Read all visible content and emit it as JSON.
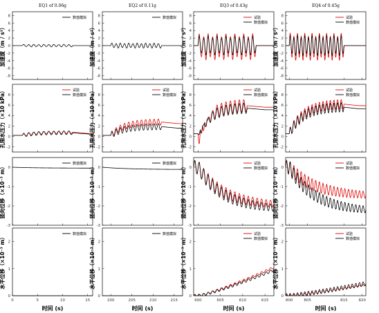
{
  "colors": {
    "test": "#e00000",
    "sim": "#000000",
    "axis": "#000000"
  },
  "chart_data": {
    "type": "line",
    "columns": [
      {
        "title": "EQ1 of 0.06g",
        "xlim": [
          0,
          16
        ],
        "xticks": [
          "0",
          "5",
          "10",
          "15"
        ],
        "xlabel": "时间 (s)"
      },
      {
        "title": "EQ2 of 0.11g",
        "xlim": [
          198,
          217
        ],
        "xticks": [
          "200",
          "205",
          "210",
          "215"
        ],
        "xlabel": "时间 (s)"
      },
      {
        "title": "EQ3 of 0.43g",
        "xlim": [
          599,
          617
        ],
        "xticks": [
          "600",
          "605",
          "610",
          "615"
        ],
        "xlabel": "时间 (s)"
      },
      {
        "title": "EQ4 of 0.45g",
        "xlim": [
          799,
          821
        ],
        "xticks": [
          "800",
          "805",
          "815",
          "820"
        ],
        "xlabel": "时间 (s)"
      }
    ],
    "rows": [
      {
        "ylabel": "加速度（m / s²）",
        "ylim": [
          -9,
          9
        ],
        "yticks": [
          "-8",
          "-6",
          "-4",
          "-2",
          "0",
          "2",
          "4",
          "6",
          "8"
        ]
      },
      {
        "ylabel": "孔隙水压力（×10 kPa）",
        "ylim": [
          -3,
          10
        ],
        "yticks": [
          "-2",
          "0",
          "2",
          "4",
          "6",
          "8"
        ]
      },
      {
        "ylabel": "竖向位移（×10⁻³ m）",
        "ylim": [
          -3,
          0.5
        ],
        "yticks": [
          "-3",
          "-2",
          "-1",
          "0"
        ]
      },
      {
        "ylabel": "水平位移（×10⁻³ m）",
        "ylim": [
          0,
          2.5
        ],
        "yticks": [
          "0",
          "1",
          "2"
        ]
      }
    ],
    "legend": {
      "series": [
        "试验",
        "数值模拟"
      ],
      "position": "top-right"
    },
    "panels": [
      {
        "row": 0,
        "col": 0,
        "legend": [
          "数值模拟"
        ],
        "series": [
          {
            "name": "数值模拟",
            "kind": "osc",
            "base": 0,
            "amp": 0.35,
            "freq": 1.0,
            "t0": 2,
            "t1": 12
          }
        ]
      },
      {
        "row": 0,
        "col": 1,
        "legend": [
          "数值模拟"
        ],
        "series": [
          {
            "name": "数值模拟",
            "kind": "osc",
            "base": 0,
            "amp": 0.7,
            "freq": 1.0,
            "t0": 200,
            "t1": 212
          }
        ]
      },
      {
        "row": 0,
        "col": 2,
        "legend": [
          "试验",
          "数值模拟"
        ],
        "series": [
          {
            "name": "试验",
            "kind": "osc",
            "base": -0.3,
            "amp": 3.6,
            "freq": 1.0,
            "t0": 600,
            "t1": 613
          },
          {
            "name": "数值模拟",
            "kind": "osc",
            "base": 0,
            "amp": 2.6,
            "freq": 1.0,
            "t0": 600,
            "t1": 613
          }
        ]
      },
      {
        "row": 0,
        "col": 3,
        "legend": [
          "试验",
          "数值模拟"
        ],
        "series": [
          {
            "name": "试验",
            "kind": "osc",
            "base": -0.3,
            "amp": 3.8,
            "freq": 1.0,
            "t0": 800,
            "t1": 815
          },
          {
            "name": "数值模拟",
            "kind": "osc",
            "base": 0,
            "amp": 2.8,
            "freq": 1.0,
            "t0": 800,
            "t1": 815
          }
        ]
      },
      {
        "row": 1,
        "col": 0,
        "legend": [
          "试验",
          "数值模拟"
        ],
        "series": [
          {
            "name": "试验",
            "kind": "pwp",
            "start": 0.2,
            "rise": 0.6,
            "amp": 0.25,
            "freq": 1.0,
            "t0": 2,
            "t1": 12
          },
          {
            "name": "数值模拟",
            "kind": "pwp",
            "start": 0.2,
            "rise": 0.5,
            "amp": 0.35,
            "freq": 1.0,
            "t0": 2,
            "t1": 12
          }
        ]
      },
      {
        "row": 1,
        "col": 1,
        "legend": [
          "试验",
          "数值模拟"
        ],
        "series": [
          {
            "name": "试验",
            "kind": "pwp",
            "start": 0.2,
            "rise": 2.6,
            "amp": 0.6,
            "freq": 1.0,
            "t0": 200,
            "t1": 212
          },
          {
            "name": "数值模拟",
            "kind": "pwp",
            "start": 0.2,
            "rise": 1.7,
            "amp": 0.6,
            "freq": 1.0,
            "t0": 200,
            "t1": 212
          }
        ]
      },
      {
        "row": 1,
        "col": 2,
        "legend": [
          "试验",
          "数值模拟"
        ],
        "series": [
          {
            "name": "试验",
            "kind": "pwp",
            "start": 0.5,
            "rise": 5.5,
            "amp": 1.2,
            "freq": 1.0,
            "t0": 600,
            "t1": 611,
            "dip": -3.8
          },
          {
            "name": "数值模拟",
            "kind": "pwp",
            "start": 0.5,
            "rise": 5.0,
            "amp": 1.0,
            "freq": 1.0,
            "t0": 600,
            "t1": 611,
            "dip": -1.6
          }
        ]
      },
      {
        "row": 1,
        "col": 3,
        "legend": [
          "试验",
          "数值模拟"
        ],
        "series": [
          {
            "name": "试验",
            "kind": "pwp",
            "start": 0.5,
            "rise": 5.8,
            "amp": 0.9,
            "freq": 1.0,
            "t0": 800,
            "t1": 815
          },
          {
            "name": "数值模拟",
            "kind": "pwp",
            "start": 0.5,
            "rise": 5.2,
            "amp": 0.9,
            "freq": 1.0,
            "t0": 800,
            "t1": 815
          }
        ]
      },
      {
        "row": 2,
        "col": 0,
        "legend": [
          "数值模拟"
        ],
        "series": [
          {
            "name": "数值模拟",
            "kind": "settle",
            "final": -0.05,
            "amp": 0.0,
            "freq": 1.0,
            "t0": 0,
            "t1": 16
          }
        ]
      },
      {
        "row": 2,
        "col": 1,
        "legend": [
          "数值模拟"
        ],
        "series": [
          {
            "name": "数值模拟",
            "kind": "settle",
            "final": -0.12,
            "amp": 0.0,
            "freq": 1.0,
            "t0": 198,
            "t1": 217
          }
        ]
      },
      {
        "row": 2,
        "col": 2,
        "legend": [
          "试验",
          "数值模拟"
        ],
        "series": [
          {
            "name": "试验",
            "kind": "settle",
            "final": -2.0,
            "amp": 0.35,
            "freq": 1.0,
            "t0": 600,
            "t1": 617
          },
          {
            "name": "数值模拟",
            "kind": "settle",
            "final": -2.2,
            "amp": 0.35,
            "freq": 1.0,
            "t0": 600,
            "t1": 617
          }
        ]
      },
      {
        "row": 2,
        "col": 3,
        "legend": [
          "试验",
          "数值模拟"
        ],
        "series": [
          {
            "name": "试验",
            "kind": "settle",
            "final": -1.5,
            "amp": 0.35,
            "freq": 1.0,
            "t0": 800,
            "t1": 821
          },
          {
            "name": "数值模拟",
            "kind": "settle",
            "final": -2.3,
            "amp": 0.35,
            "freq": 1.0,
            "t0": 800,
            "t1": 821
          }
        ]
      },
      {
        "row": 3,
        "col": 0,
        "legend": [
          "数值模拟"
        ],
        "series": [
          {
            "name": "数值模拟",
            "kind": "hor",
            "final": -0.02,
            "amp": 0.0,
            "freq": 1.0,
            "t0": 0,
            "t1": 16
          }
        ]
      },
      {
        "row": 3,
        "col": 1,
        "legend": [
          "数值模拟"
        ],
        "series": [
          {
            "name": "数值模拟",
            "kind": "hor",
            "final": -0.05,
            "amp": 0.0,
            "freq": 1.0,
            "t0": 198,
            "t1": 217
          }
        ]
      },
      {
        "row": 3,
        "col": 2,
        "legend": [
          "试验",
          "数值模拟"
        ],
        "series": [
          {
            "name": "试验",
            "kind": "hor",
            "final": 1.05,
            "amp": 0.04,
            "freq": 1.0,
            "t0": 600,
            "t1": 617
          },
          {
            "name": "数值模拟",
            "kind": "hor",
            "final": 0.95,
            "amp": 0.05,
            "freq": 1.0,
            "t0": 600,
            "t1": 617
          }
        ]
      },
      {
        "row": 3,
        "col": 3,
        "legend": [
          "试验",
          "数值模拟"
        ],
        "series": [
          {
            "name": "试验",
            "kind": "hor",
            "final": 0.4,
            "amp": 0.03,
            "freq": 1.0,
            "t0": 800,
            "t1": 821
          },
          {
            "name": "数值模拟",
            "kind": "hor",
            "final": 0.45,
            "amp": 0.08,
            "freq": 1.0,
            "t0": 800,
            "t1": 821
          }
        ]
      }
    ]
  }
}
